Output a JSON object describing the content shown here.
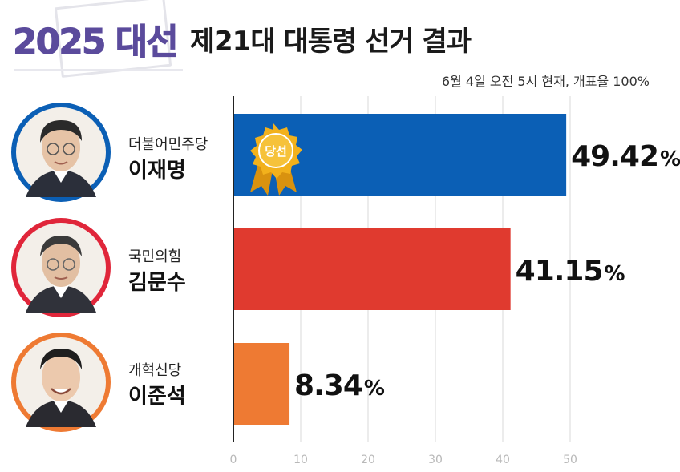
{
  "header": {
    "brand": "2025 대선",
    "title": "제21대 대통령 선거 결과",
    "timestamp": "6월 4일 오전 5시 현재, 개표율 100%"
  },
  "candidates": [
    {
      "party": "더불어민주당",
      "name": "이재명",
      "color": "#0b5fb5",
      "ring": "#0b5fb5",
      "elected": true,
      "badge": "당선",
      "value_label": "49.42",
      "unit": "%"
    },
    {
      "party": "국민의힘",
      "name": "김문수",
      "color": "#e03a2f",
      "ring": "#e0263a",
      "elected": false,
      "value_label": "41.15",
      "unit": "%"
    },
    {
      "party": "개혁신당",
      "name": "이준석",
      "color": "#ee7a33",
      "ring": "#ee7a33",
      "elected": false,
      "value_label": "8.34",
      "unit": "%"
    }
  ],
  "chart_data": {
    "type": "bar",
    "orientation": "horizontal",
    "categories": [
      "이재명",
      "김문수",
      "이준석"
    ],
    "values": [
      49.42,
      41.15,
      8.34
    ],
    "xlim": [
      0,
      50
    ],
    "xticks": [
      "0",
      "10",
      "20",
      "30",
      "40",
      "50"
    ],
    "grid": true,
    "colors": [
      "#0b5fb5",
      "#e03a2f",
      "#ee7a33"
    ]
  }
}
